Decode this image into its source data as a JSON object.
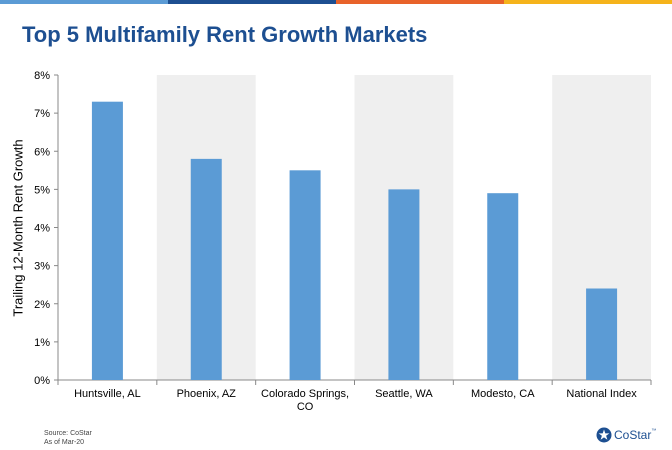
{
  "title": "Top 5 Multifamily Rent Growth Markets",
  "brand_stripe_colors": [
    "#5b9bd5",
    "#1d4f91",
    "#e8622a",
    "#f5b31b"
  ],
  "chart_data": {
    "type": "bar",
    "categories": [
      "Huntsville, AL",
      "Phoenix, AZ",
      "Colorado Springs, CO",
      "Seattle, WA",
      "Modesto, CA",
      "National Index"
    ],
    "category_label_lines": [
      [
        "Huntsville, AL"
      ],
      [
        "Phoenix, AZ"
      ],
      [
        "Colorado Springs,",
        "CO"
      ],
      [
        "Seattle, WA"
      ],
      [
        "Modesto, CA"
      ],
      [
        "National Index"
      ]
    ],
    "values": [
      7.3,
      5.8,
      5.5,
      5.0,
      4.9,
      2.4
    ],
    "ylabel": "Trailing 12-Month Rent Growth",
    "xlabel": "",
    "ylim": [
      0,
      8
    ],
    "yticks": [
      0,
      1,
      2,
      3,
      4,
      5,
      6,
      7,
      8
    ],
    "ytick_labels": [
      "0%",
      "1%",
      "2%",
      "3%",
      "4%",
      "5%",
      "6%",
      "7%",
      "8%"
    ],
    "bar_color": "#5b9bd5",
    "band_color": "#efefef",
    "alternating_bands": true,
    "grid": false
  },
  "footer": {
    "source": "Source: CoStar",
    "as_of": "As of Mar-20",
    "logo_text": "CoStar",
    "logo_tm": "™",
    "logo_icon": "costar-star-icon"
  }
}
